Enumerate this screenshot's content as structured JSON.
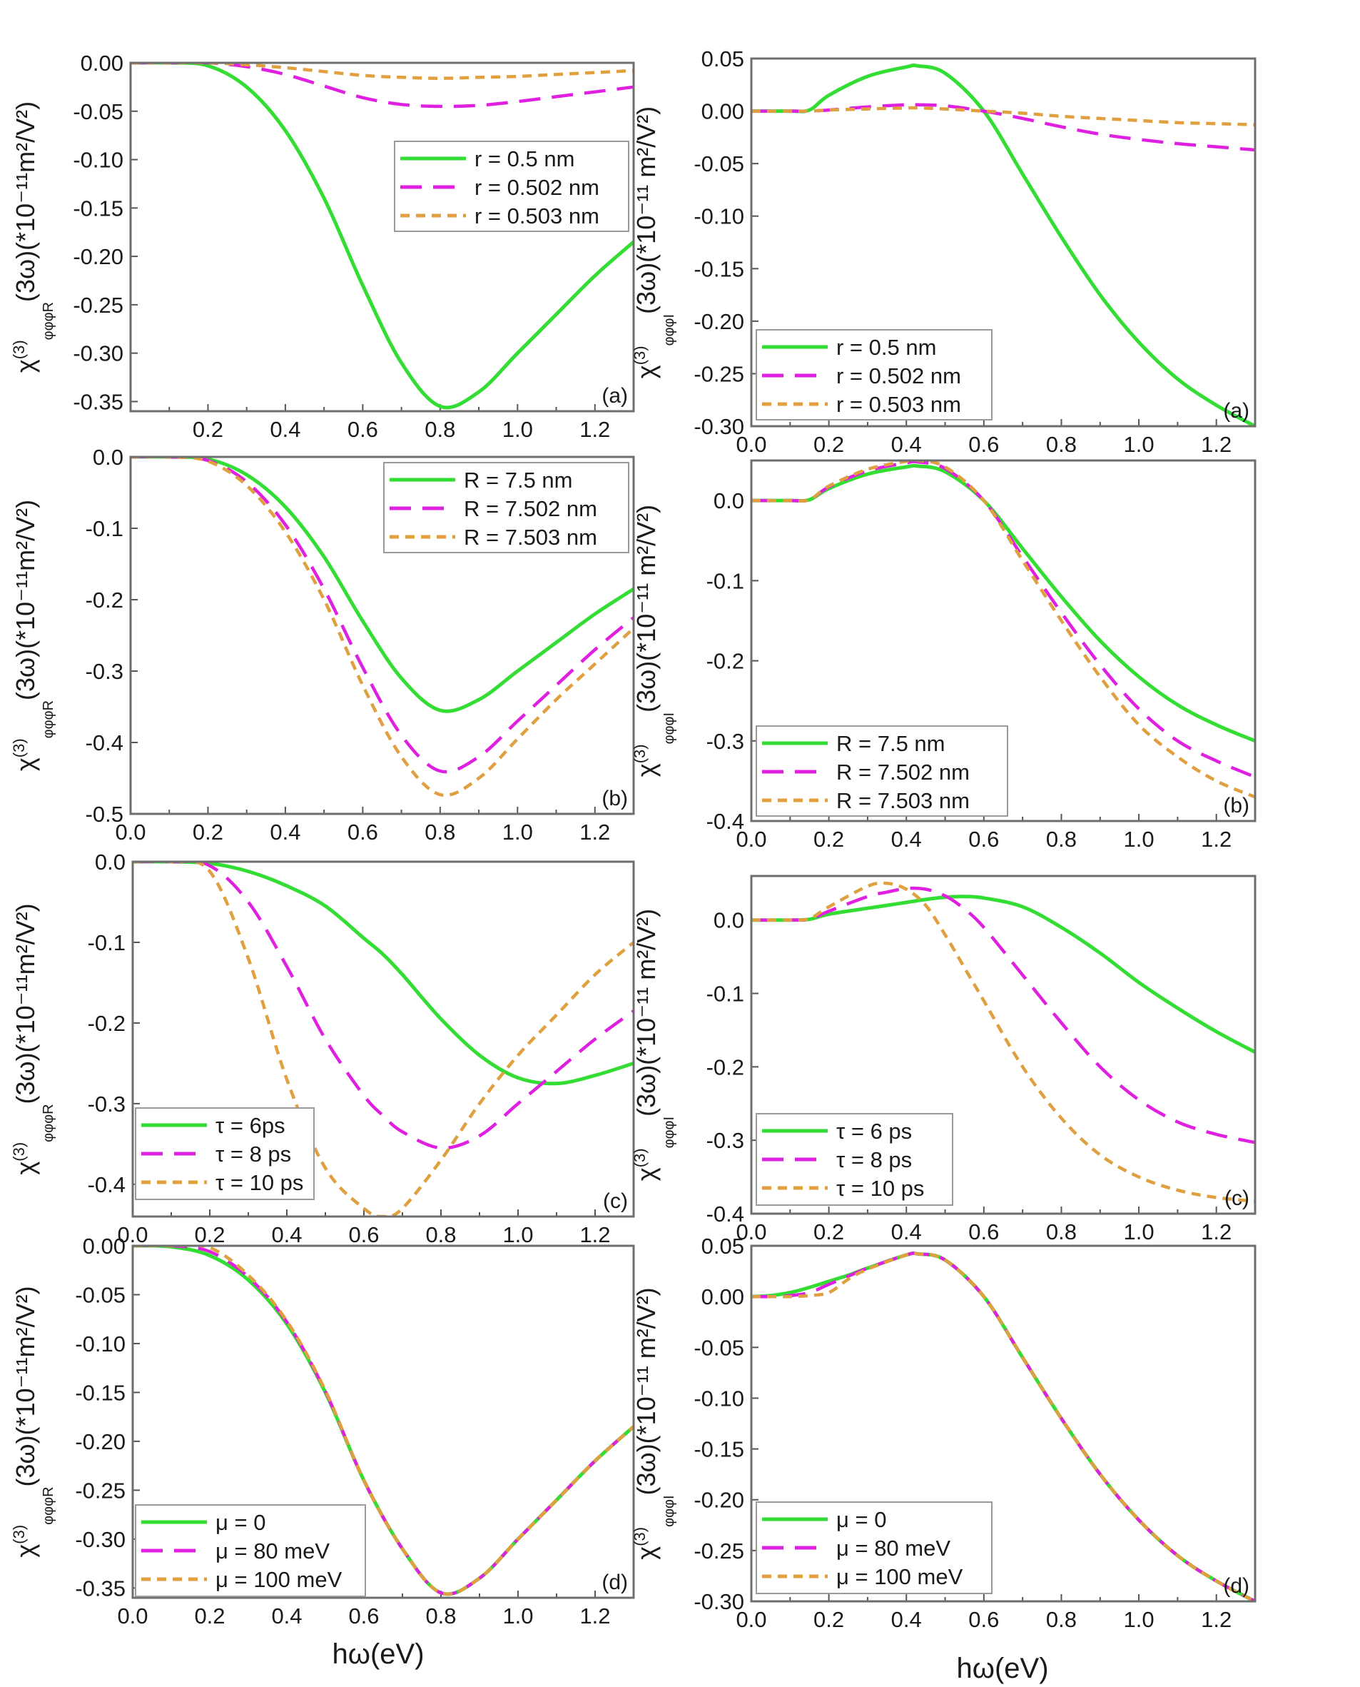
{
  "figure": {
    "xlabel": "hω(eV)",
    "ylabel_left_prefix": "χ",
    "ylabel_left_sup": "(3)",
    "ylabel_left_sub": "φφφR",
    "ylabel_left_rest": "(3ω)(*10⁻¹¹m²/V²)",
    "ylabel_right_prefix": "χ",
    "ylabel_right_sup": "(3)",
    "ylabel_right_sub": "φφφI",
    "ylabel_right_rest": "(3ω)(*10⁻¹¹ m²/V²)"
  },
  "colors": {
    "green": "#33dd33",
    "magenta": "#e020e0",
    "orange": "#e0a040"
  },
  "chart_data": [
    {
      "id": "left-a",
      "type": "line",
      "panel_label": "(a)",
      "xlim": [
        0.0,
        1.3
      ],
      "ylim": [
        -0.36,
        0.0
      ],
      "xticks": [
        "0.2",
        "0.4",
        "0.6",
        "0.8",
        "1.0",
        "1.2"
      ],
      "yticks": [
        "0.00",
        "-0.05",
        "-0.10",
        "-0.15",
        "-0.20",
        "-0.25",
        "-0.30",
        "-0.35"
      ],
      "legend_position": "center-right",
      "x": [
        0.0,
        0.1,
        0.2,
        0.3,
        0.4,
        0.5,
        0.6,
        0.7,
        0.8,
        0.9,
        1.0,
        1.1,
        1.2,
        1.3
      ],
      "series": [
        {
          "name": "r = 0.5 nm",
          "color": "green",
          "dash": "solid",
          "values": [
            0.0,
            0.0,
            -0.003,
            -0.025,
            -0.07,
            -0.14,
            -0.23,
            -0.31,
            -0.355,
            -0.34,
            -0.3,
            -0.26,
            -0.22,
            -0.185
          ]
        },
        {
          "name": "r = 0.502 nm",
          "color": "magenta",
          "dash": "long",
          "values": [
            0.0,
            0.0,
            0.0,
            -0.004,
            -0.012,
            -0.024,
            -0.036,
            -0.043,
            -0.045,
            -0.044,
            -0.04,
            -0.035,
            -0.03,
            -0.025
          ]
        },
        {
          "name": "r = 0.503 nm",
          "color": "orange",
          "dash": "short",
          "values": [
            0.0,
            0.0,
            0.0,
            -0.002,
            -0.005,
            -0.009,
            -0.013,
            -0.015,
            -0.016,
            -0.015,
            -0.014,
            -0.012,
            -0.01,
            -0.008
          ]
        }
      ]
    },
    {
      "id": "right-a",
      "type": "line",
      "panel_label": "(a)",
      "xlim": [
        0.0,
        1.3
      ],
      "ylim": [
        -0.3,
        0.05
      ],
      "xticks": [
        "0.0",
        "0.2",
        "0.4",
        "0.6",
        "0.8",
        "1.0",
        "1.2"
      ],
      "yticks": [
        "0.05",
        "0.00",
        "-0.05",
        "-0.10",
        "-0.15",
        "-0.20",
        "-0.25",
        "-0.30"
      ],
      "legend_position": "bottom-left",
      "x": [
        0.0,
        0.1,
        0.15,
        0.2,
        0.3,
        0.4,
        0.43,
        0.5,
        0.6,
        0.7,
        0.8,
        0.9,
        1.0,
        1.1,
        1.2,
        1.3
      ],
      "series": [
        {
          "name": "r = 0.5 nm",
          "color": "green",
          "dash": "solid",
          "values": [
            0.0,
            0.0,
            0.001,
            0.015,
            0.033,
            0.042,
            0.043,
            0.036,
            0.0,
            -0.06,
            -0.12,
            -0.175,
            -0.22,
            -0.255,
            -0.28,
            -0.3
          ]
        },
        {
          "name": "r = 0.502 nm",
          "color": "magenta",
          "dash": "long",
          "values": [
            0.0,
            0.0,
            0.0,
            0.001,
            0.004,
            0.006,
            0.006,
            0.005,
            0.0,
            -0.007,
            -0.015,
            -0.022,
            -0.027,
            -0.031,
            -0.034,
            -0.037
          ]
        },
        {
          "name": "r = 0.503 nm",
          "color": "orange",
          "dash": "short",
          "values": [
            0.0,
            0.0,
            0.0,
            0.001,
            0.002,
            0.003,
            0.003,
            0.002,
            0.0,
            -0.002,
            -0.005,
            -0.007,
            -0.009,
            -0.011,
            -0.012,
            -0.013
          ]
        }
      ]
    },
    {
      "id": "left-b",
      "type": "line",
      "panel_label": "(b)",
      "xlim": [
        0.0,
        1.3
      ],
      "ylim": [
        -0.5,
        0.0
      ],
      "xticks": [
        "0.0",
        "0.2",
        "0.4",
        "0.6",
        "0.8",
        "1.0",
        "1.2"
      ],
      "yticks": [
        "0.0",
        "-0.1",
        "-0.2",
        "-0.3",
        "-0.4",
        "-0.5"
      ],
      "legend_position": "top-right",
      "x": [
        0.0,
        0.1,
        0.2,
        0.3,
        0.4,
        0.5,
        0.6,
        0.7,
        0.8,
        0.9,
        1.0,
        1.1,
        1.2,
        1.3
      ],
      "series": [
        {
          "name": "R = 7.5 nm",
          "color": "green",
          "dash": "solid",
          "values": [
            0.0,
            0.0,
            -0.003,
            -0.025,
            -0.07,
            -0.14,
            -0.23,
            -0.31,
            -0.355,
            -0.34,
            -0.3,
            -0.26,
            -0.22,
            -0.185
          ]
        },
        {
          "name": "R = 7.502 nm",
          "color": "magenta",
          "dash": "long",
          "values": [
            0.0,
            0.0,
            -0.005,
            -0.035,
            -0.095,
            -0.185,
            -0.295,
            -0.39,
            -0.44,
            -0.42,
            -0.37,
            -0.32,
            -0.27,
            -0.225
          ]
        },
        {
          "name": "R = 7.503 nm",
          "color": "orange",
          "dash": "short",
          "values": [
            0.0,
            0.0,
            -0.006,
            -0.04,
            -0.105,
            -0.2,
            -0.32,
            -0.42,
            -0.473,
            -0.45,
            -0.395,
            -0.34,
            -0.29,
            -0.24
          ]
        }
      ]
    },
    {
      "id": "right-b",
      "type": "line",
      "panel_label": "(b)",
      "xlim": [
        0.0,
        1.3
      ],
      "ylim": [
        -0.4,
        0.05
      ],
      "xticks": [
        "0.0",
        "0.2",
        "0.4",
        "0.6",
        "0.8",
        "1.0",
        "1.2"
      ],
      "yticks": [
        "0.0",
        "-0.1",
        "-0.2",
        "-0.3",
        "-0.4"
      ],
      "legend_position": "bottom-left",
      "x": [
        0.0,
        0.1,
        0.15,
        0.2,
        0.3,
        0.4,
        0.43,
        0.5,
        0.6,
        0.7,
        0.8,
        0.9,
        1.0,
        1.1,
        1.2,
        1.3
      ],
      "series": [
        {
          "name": "R = 7.5 nm",
          "color": "green",
          "dash": "solid",
          "values": [
            0.0,
            0.0,
            0.001,
            0.015,
            0.033,
            0.042,
            0.043,
            0.036,
            0.0,
            -0.06,
            -0.12,
            -0.175,
            -0.22,
            -0.255,
            -0.28,
            -0.3
          ]
        },
        {
          "name": "R = 7.502 nm",
          "color": "magenta",
          "dash": "long",
          "values": [
            0.0,
            0.0,
            0.001,
            0.017,
            0.037,
            0.047,
            0.048,
            0.04,
            0.0,
            -0.07,
            -0.14,
            -0.205,
            -0.26,
            -0.3,
            -0.325,
            -0.345
          ]
        },
        {
          "name": "R = 7.503 nm",
          "color": "orange",
          "dash": "short",
          "values": [
            0.0,
            0.0,
            0.001,
            0.018,
            0.039,
            0.049,
            0.05,
            0.042,
            0.0,
            -0.075,
            -0.15,
            -0.22,
            -0.28,
            -0.32,
            -0.35,
            -0.37
          ]
        }
      ]
    },
    {
      "id": "left-c",
      "type": "line",
      "panel_label": "(c)",
      "xlim": [
        0.0,
        1.3
      ],
      "ylim": [
        -0.44,
        0.0
      ],
      "xticks": [
        "0.0",
        "0.2",
        "0.4",
        "0.6",
        "0.8",
        "1.0",
        "1.2"
      ],
      "yticks": [
        "0.0",
        "-0.1",
        "-0.2",
        "-0.3",
        "-0.4"
      ],
      "legend_position": "bottom-left",
      "x": [
        0.0,
        0.1,
        0.2,
        0.3,
        0.4,
        0.5,
        0.6,
        0.65,
        0.7,
        0.8,
        0.9,
        1.0,
        1.1,
        1.2,
        1.3
      ],
      "series": [
        {
          "name": "τ = 6ps",
          "color": "green",
          "dash": "solid",
          "values": [
            0.0,
            0.0,
            -0.002,
            -0.012,
            -0.03,
            -0.055,
            -0.095,
            -0.115,
            -0.14,
            -0.195,
            -0.24,
            -0.268,
            -0.275,
            -0.265,
            -0.25
          ]
        },
        {
          "name": "τ = 8 ps",
          "color": "magenta",
          "dash": "long",
          "values": [
            0.0,
            0.0,
            -0.005,
            -0.05,
            -0.13,
            -0.22,
            -0.29,
            -0.315,
            -0.335,
            -0.355,
            -0.34,
            -0.3,
            -0.26,
            -0.22,
            -0.185
          ]
        },
        {
          "name": "τ = 10 ps",
          "color": "orange",
          "dash": "short",
          "values": [
            0.0,
            0.0,
            -0.012,
            -0.12,
            -0.27,
            -0.38,
            -0.43,
            -0.44,
            -0.43,
            -0.37,
            -0.3,
            -0.24,
            -0.19,
            -0.14,
            -0.1
          ]
        }
      ]
    },
    {
      "id": "right-c",
      "type": "line",
      "panel_label": "(c)",
      "xlim": [
        0.0,
        1.3
      ],
      "ylim": [
        -0.4,
        0.06
      ],
      "xticks": [
        "0.0",
        "0.2",
        "0.4",
        "0.6",
        "0.8",
        "1.0",
        "1.2"
      ],
      "yticks": [
        "0.0",
        "-0.1",
        "-0.2",
        "-0.3",
        "-0.4"
      ],
      "legend_position": "bottom-left",
      "x": [
        0.0,
        0.1,
        0.15,
        0.2,
        0.3,
        0.35,
        0.4,
        0.45,
        0.5,
        0.55,
        0.6,
        0.7,
        0.8,
        0.9,
        1.0,
        1.1,
        1.2,
        1.3
      ],
      "series": [
        {
          "name": "τ = 6 ps",
          "color": "green",
          "dash": "solid",
          "values": [
            0.0,
            0.0,
            0.001,
            0.008,
            0.016,
            0.02,
            0.024,
            0.028,
            0.031,
            0.032,
            0.03,
            0.018,
            -0.01,
            -0.045,
            -0.085,
            -0.12,
            -0.152,
            -0.18
          ]
        },
        {
          "name": "τ = 8 ps",
          "color": "magenta",
          "dash": "long",
          "values": [
            0.0,
            0.0,
            0.001,
            0.012,
            0.032,
            0.038,
            0.043,
            0.042,
            0.033,
            0.015,
            -0.01,
            -0.075,
            -0.14,
            -0.2,
            -0.245,
            -0.275,
            -0.292,
            -0.303
          ]
        },
        {
          "name": "τ = 10 ps",
          "color": "orange",
          "dash": "short",
          "values": [
            0.0,
            0.0,
            0.002,
            0.018,
            0.046,
            0.05,
            0.042,
            0.02,
            -0.02,
            -0.065,
            -0.11,
            -0.2,
            -0.27,
            -0.32,
            -0.35,
            -0.368,
            -0.378,
            -0.383
          ]
        }
      ]
    },
    {
      "id": "left-d",
      "type": "line",
      "panel_label": "(d)",
      "xlim": [
        0.0,
        1.3
      ],
      "ylim": [
        -0.36,
        0.0
      ],
      "xticks": [
        "0.0",
        "0.2",
        "0.4",
        "0.6",
        "0.8",
        "1.0",
        "1.2"
      ],
      "yticks": [
        "0.00",
        "-0.05",
        "-0.10",
        "-0.15",
        "-0.20",
        "-0.25",
        "-0.30",
        "-0.35"
      ],
      "legend_position": "bottom-left",
      "x": [
        0.0,
        0.1,
        0.2,
        0.3,
        0.4,
        0.5,
        0.6,
        0.7,
        0.8,
        0.9,
        1.0,
        1.1,
        1.2,
        1.3
      ],
      "series": [
        {
          "name": "μ = 0",
          "color": "green",
          "dash": "solid",
          "values": [
            0.0,
            -0.001,
            -0.01,
            -0.035,
            -0.08,
            -0.15,
            -0.24,
            -0.31,
            -0.355,
            -0.34,
            -0.3,
            -0.26,
            -0.22,
            -0.185
          ]
        },
        {
          "name": "μ = 80 meV",
          "color": "magenta",
          "dash": "long",
          "values": [
            0.0,
            0.0,
            -0.006,
            -0.032,
            -0.078,
            -0.149,
            -0.24,
            -0.31,
            -0.355,
            -0.34,
            -0.3,
            -0.26,
            -0.22,
            -0.185
          ]
        },
        {
          "name": "μ = 100 meV",
          "color": "orange",
          "dash": "short",
          "values": [
            0.0,
            0.0,
            -0.002,
            -0.03,
            -0.077,
            -0.148,
            -0.24,
            -0.31,
            -0.355,
            -0.34,
            -0.3,
            -0.26,
            -0.22,
            -0.185
          ]
        }
      ]
    },
    {
      "id": "right-d",
      "type": "line",
      "panel_label": "(d)",
      "xlim": [
        0.0,
        1.3
      ],
      "ylim": [
        -0.3,
        0.05
      ],
      "xticks": [
        "0.0",
        "0.2",
        "0.4",
        "0.6",
        "0.8",
        "1.0",
        "1.2"
      ],
      "yticks": [
        "0.05",
        "0.00",
        "-0.05",
        "-0.10",
        "-0.15",
        "-0.20",
        "-0.25",
        "-0.30"
      ],
      "legend_position": "bottom-left",
      "x": [
        0.0,
        0.05,
        0.1,
        0.15,
        0.2,
        0.25,
        0.3,
        0.4,
        0.43,
        0.5,
        0.6,
        0.7,
        0.8,
        0.9,
        1.0,
        1.1,
        1.2,
        1.3
      ],
      "series": [
        {
          "name": "μ = 0",
          "color": "green",
          "dash": "solid",
          "values": [
            0.0,
            0.001,
            0.004,
            0.009,
            0.015,
            0.021,
            0.028,
            0.041,
            0.042,
            0.036,
            0.0,
            -0.06,
            -0.12,
            -0.175,
            -0.22,
            -0.255,
            -0.28,
            -0.3
          ]
        },
        {
          "name": "μ = 80 meV",
          "color": "magenta",
          "dash": "long",
          "values": [
            0.0,
            0.0,
            0.001,
            0.004,
            0.012,
            0.02,
            0.028,
            0.041,
            0.042,
            0.036,
            0.0,
            -0.06,
            -0.12,
            -0.175,
            -0.22,
            -0.255,
            -0.28,
            -0.3
          ]
        },
        {
          "name": "μ = 100 meV",
          "color": "orange",
          "dash": "short",
          "values": [
            0.0,
            0.0,
            0.0,
            0.001,
            0.004,
            0.017,
            0.027,
            0.041,
            0.042,
            0.036,
            0.0,
            -0.06,
            -0.12,
            -0.175,
            -0.22,
            -0.255,
            -0.28,
            -0.3
          ]
        }
      ]
    }
  ]
}
